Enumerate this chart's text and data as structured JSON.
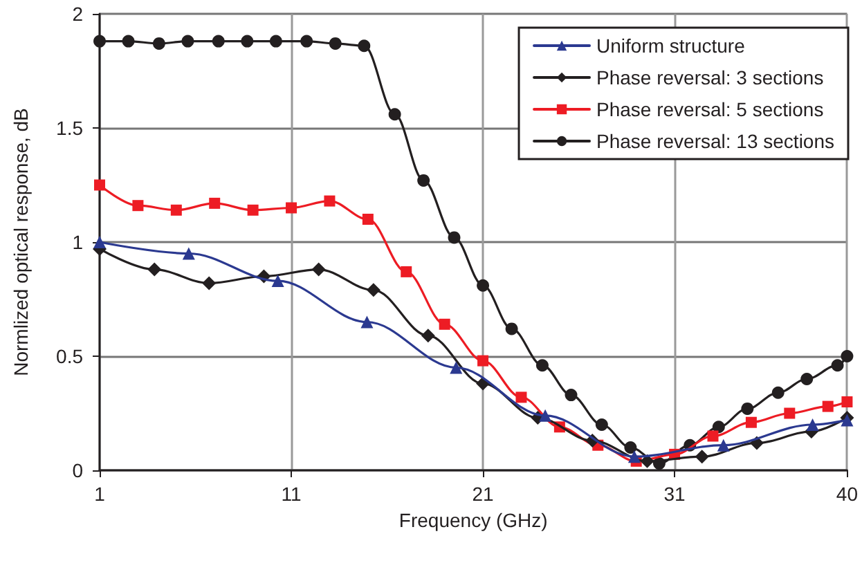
{
  "chart_data": {
    "type": "line",
    "xlabel": "Frequency (GHz)",
    "ylabel": "Normlized optical response, dB",
    "xlim": [
      1,
      40
    ],
    "xticks": [
      1,
      11,
      21,
      31,
      40
    ],
    "ylim": [
      0,
      2
    ],
    "yticks": [
      0,
      0.5,
      1,
      1.5,
      2
    ],
    "grid": true,
    "legend": "top right",
    "series": [
      {
        "name": "Uniform structure",
        "color": "#2b3990",
        "marker": "triangle",
        "x": [
          1,
          5.65,
          10.3,
          14.95,
          19.6,
          24.25,
          28.9,
          33.55,
          38.2,
          40
        ],
        "values": [
          1.0,
          0.95,
          0.83,
          0.65,
          0.45,
          0.24,
          0.06,
          0.11,
          0.2,
          0.22
        ]
      },
      {
        "name": "Phase reversal: 3 sections",
        "color": "#231f20",
        "marker": "diamond",
        "x": [
          1,
          3.86,
          6.71,
          9.57,
          12.43,
          15.29,
          18.14,
          21,
          23.86,
          26.71,
          29.57,
          32.43,
          35.29,
          38.14,
          40
        ],
        "values": [
          0.97,
          0.88,
          0.82,
          0.85,
          0.88,
          0.79,
          0.59,
          0.38,
          0.23,
          0.13,
          0.04,
          0.06,
          0.12,
          0.17,
          0.23
        ]
      },
      {
        "name": "Phase reversal: 5 sections",
        "color": "#ed1c24",
        "marker": "square",
        "x": [
          1,
          3,
          5,
          7,
          9,
          11,
          13,
          15,
          17,
          19,
          21,
          23,
          25,
          27,
          29,
          31,
          33,
          35,
          37,
          39,
          40
        ],
        "values": [
          1.25,
          1.16,
          1.14,
          1.17,
          1.14,
          1.15,
          1.18,
          1.1,
          0.87,
          0.64,
          0.48,
          0.32,
          0.19,
          0.11,
          0.04,
          0.07,
          0.15,
          0.21,
          0.25,
          0.28,
          0.3
        ]
      },
      {
        "name": "Phase reversal: 13 sections",
        "color": "#231f20",
        "marker": "circle",
        "x": [
          1,
          2.5,
          4.1,
          5.6,
          7.2,
          8.7,
          10.2,
          11.8,
          13.3,
          14.8,
          16.4,
          17.9,
          19.5,
          21,
          22.5,
          24.1,
          25.6,
          27.2,
          28.7,
          30.2,
          31.8,
          33.3,
          34.8,
          36.4,
          37.9,
          39.5,
          40
        ],
        "values": [
          1.88,
          1.88,
          1.87,
          1.88,
          1.88,
          1.88,
          1.88,
          1.88,
          1.87,
          1.86,
          1.56,
          1.27,
          1.02,
          0.81,
          0.62,
          0.46,
          0.33,
          0.2,
          0.1,
          0.03,
          0.11,
          0.19,
          0.27,
          0.34,
          0.4,
          0.46,
          0.5
        ]
      }
    ]
  }
}
